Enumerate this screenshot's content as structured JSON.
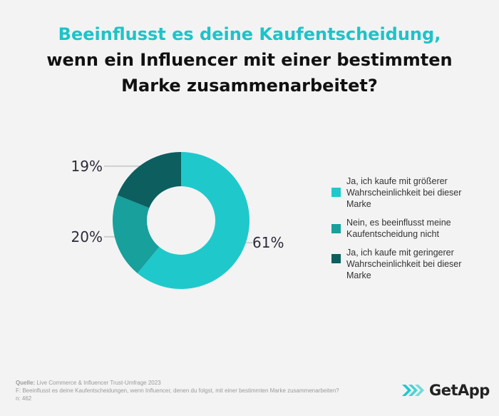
{
  "title": {
    "line1": "Beeinflusst es deine Kaufentscheidung,",
    "line2": "wenn ein Influencer mit einer bestimmten",
    "line3": "Marke zusammenarbeitet?"
  },
  "chart_data": {
    "type": "pie",
    "donut": true,
    "categories": [
      "Ja, ich kaufe mit größerer Wahrscheinlichkeit bei dieser Marke",
      "Nein, es beeinflusst meine Kaufentscheidung nicht",
      "Ja, ich kaufe mit geringerer Wahrscheinlichkeit bei dieser Marke"
    ],
    "values": [
      61,
      20,
      19
    ],
    "labels": [
      "61%",
      "20%",
      "19%"
    ],
    "colors": [
      "#1fc9cb",
      "#17a09c",
      "#0c5f5e"
    ],
    "legend_position": "right"
  },
  "legend": [
    {
      "label": "Ja, ich kaufe mit größerer Wahrscheinlichkeit bei dieser Marke",
      "color": "#1fc9cb"
    },
    {
      "label": "Nein, es beeinflusst meine Kaufentscheidung nicht",
      "color": "#17a09c"
    },
    {
      "label": "Ja, ich kaufe mit geringerer Wahrscheinlichkeit bei dieser Marke",
      "color": "#0c5f5e"
    }
  ],
  "footer": {
    "source_label": "Quelle:",
    "source_text": " Live Commerce & Influencer Trust-Umfrage 2023",
    "question": "F: Beeinflusst es deine Kaufentscheidungen, wenn Influencer, denen du folgst, mit einer bestimmten Marke zusammenarbeiten?",
    "n": "n: 462"
  },
  "logo": {
    "text": "GetApp",
    "icon": "getapp-chevrons-icon",
    "color": "#1fc9cb"
  }
}
